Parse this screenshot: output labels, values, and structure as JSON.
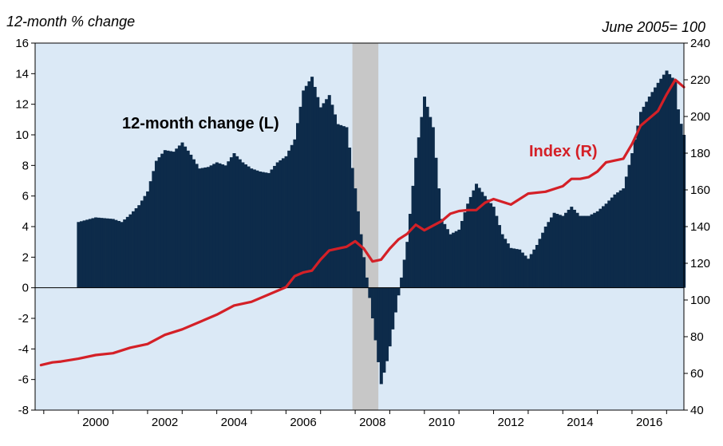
{
  "chart_data": {
    "type": "bar",
    "left_axis_label": "12-month % change",
    "right_axis_label": "June 2005= 100",
    "annotations": {
      "series_left": "12-month change (L)",
      "series_right": "Index (R)"
    },
    "x_range": [
      1998.75,
      2017.5
    ],
    "x_ticks": [
      2000,
      2002,
      2004,
      2006,
      2008,
      2010,
      2012,
      2014,
      2016
    ],
    "left_axis": {
      "min": -8,
      "max": 16,
      "ticks": [
        -8,
        -6,
        -4,
        -2,
        0,
        2,
        4,
        6,
        8,
        10,
        12,
        14,
        16
      ]
    },
    "right_axis": {
      "min": 40,
      "max": 240,
      "ticks": [
        40,
        60,
        80,
        100,
        120,
        140,
        160,
        180,
        200,
        220,
        240
      ]
    },
    "shaded_period": [
      2007.92,
      2008.67
    ],
    "grid": false,
    "colors": {
      "bars": "#0d2b4a",
      "index_line": "#d42027",
      "background": "#dbe9f6",
      "shading": "#c7c7c7",
      "annotation_left": "#000000",
      "annotation_right": "#d42027"
    },
    "series": [
      {
        "name": "12-month change (L)",
        "type": "bar",
        "axis": "left",
        "points": [
          [
            2000.0,
            4.3
          ],
          [
            2000.5,
            4.6
          ],
          [
            2001.0,
            4.5
          ],
          [
            2001.25,
            4.3
          ],
          [
            2001.5,
            4.8
          ],
          [
            2001.75,
            5.4
          ],
          [
            2002.0,
            6.3
          ],
          [
            2002.25,
            8.3
          ],
          [
            2002.5,
            9.0
          ],
          [
            2002.75,
            8.9
          ],
          [
            2003.0,
            9.5
          ],
          [
            2003.25,
            8.7
          ],
          [
            2003.5,
            7.8
          ],
          [
            2003.75,
            7.9
          ],
          [
            2004.0,
            8.2
          ],
          [
            2004.25,
            8.0
          ],
          [
            2004.5,
            8.8
          ],
          [
            2004.75,
            8.2
          ],
          [
            2005.0,
            7.8
          ],
          [
            2005.25,
            7.6
          ],
          [
            2005.5,
            7.5
          ],
          [
            2005.75,
            8.2
          ],
          [
            2006.0,
            8.6
          ],
          [
            2006.25,
            9.7
          ],
          [
            2006.5,
            12.9
          ],
          [
            2006.75,
            13.8
          ],
          [
            2007.0,
            11.8
          ],
          [
            2007.25,
            12.6
          ],
          [
            2007.5,
            10.7
          ],
          [
            2007.75,
            10.5
          ],
          [
            2008.0,
            6.5
          ],
          [
            2008.25,
            2.0
          ],
          [
            2008.5,
            -2.0
          ],
          [
            2008.75,
            -6.3
          ],
          [
            2008.95,
            -4.5
          ],
          [
            2009.25,
            -0.5
          ],
          [
            2009.5,
            3.0
          ],
          [
            2009.75,
            8.5
          ],
          [
            2010.0,
            12.5
          ],
          [
            2010.25,
            10.5
          ],
          [
            2010.5,
            4.5
          ],
          [
            2010.75,
            3.5
          ],
          [
            2011.0,
            3.8
          ],
          [
            2011.25,
            5.5
          ],
          [
            2011.5,
            6.8
          ],
          [
            2011.75,
            6.0
          ],
          [
            2012.0,
            5.3
          ],
          [
            2012.25,
            3.5
          ],
          [
            2012.5,
            2.6
          ],
          [
            2012.75,
            2.5
          ],
          [
            2013.0,
            1.9
          ],
          [
            2013.25,
            2.8
          ],
          [
            2013.5,
            4.0
          ],
          [
            2013.75,
            4.9
          ],
          [
            2014.0,
            4.7
          ],
          [
            2014.25,
            5.3
          ],
          [
            2014.5,
            4.7
          ],
          [
            2014.75,
            4.7
          ],
          [
            2015.0,
            5.0
          ],
          [
            2015.25,
            5.5
          ],
          [
            2015.5,
            6.1
          ],
          [
            2015.75,
            6.5
          ],
          [
            2016.0,
            8.8
          ],
          [
            2016.25,
            11.5
          ],
          [
            2016.5,
            12.5
          ],
          [
            2016.75,
            13.4
          ],
          [
            2017.0,
            14.2
          ],
          [
            2017.25,
            13.5
          ],
          [
            2017.35,
            11.3
          ],
          [
            2017.5,
            10.0
          ]
        ]
      },
      {
        "name": "Index (R)",
        "type": "line",
        "axis": "right",
        "points": [
          [
            1998.92,
            64.5
          ],
          [
            1999.25,
            66
          ],
          [
            1999.5,
            66.5
          ],
          [
            2000.0,
            68
          ],
          [
            2000.5,
            70
          ],
          [
            2001.0,
            71
          ],
          [
            2001.5,
            74
          ],
          [
            2002.0,
            76
          ],
          [
            2002.5,
            81
          ],
          [
            2003.0,
            84
          ],
          [
            2003.5,
            88
          ],
          [
            2004.0,
            92
          ],
          [
            2004.5,
            97
          ],
          [
            2005.0,
            99
          ],
          [
            2005.5,
            103
          ],
          [
            2006.0,
            107
          ],
          [
            2006.25,
            113
          ],
          [
            2006.5,
            115
          ],
          [
            2006.75,
            116
          ],
          [
            2007.0,
            122
          ],
          [
            2007.25,
            127
          ],
          [
            2007.5,
            128
          ],
          [
            2007.75,
            129
          ],
          [
            2008.0,
            132
          ],
          [
            2008.25,
            128
          ],
          [
            2008.5,
            121
          ],
          [
            2008.75,
            122
          ],
          [
            2009.0,
            128
          ],
          [
            2009.25,
            133
          ],
          [
            2009.5,
            136
          ],
          [
            2009.75,
            141
          ],
          [
            2010.0,
            138
          ],
          [
            2010.5,
            143
          ],
          [
            2010.75,
            147
          ],
          [
            2011.0,
            148.5
          ],
          [
            2011.25,
            149
          ],
          [
            2011.5,
            149
          ],
          [
            2011.75,
            153
          ],
          [
            2012.0,
            155
          ],
          [
            2012.5,
            152
          ],
          [
            2013.0,
            158
          ],
          [
            2013.5,
            159
          ],
          [
            2014.0,
            162
          ],
          [
            2014.25,
            166
          ],
          [
            2014.5,
            166
          ],
          [
            2014.75,
            167
          ],
          [
            2015.0,
            170
          ],
          [
            2015.25,
            175
          ],
          [
            2015.5,
            176
          ],
          [
            2015.75,
            177
          ],
          [
            2016.0,
            185
          ],
          [
            2016.25,
            195
          ],
          [
            2016.5,
            199
          ],
          [
            2016.75,
            203
          ],
          [
            2017.0,
            212
          ],
          [
            2017.25,
            220
          ],
          [
            2017.5,
            216
          ]
        ]
      }
    ]
  }
}
